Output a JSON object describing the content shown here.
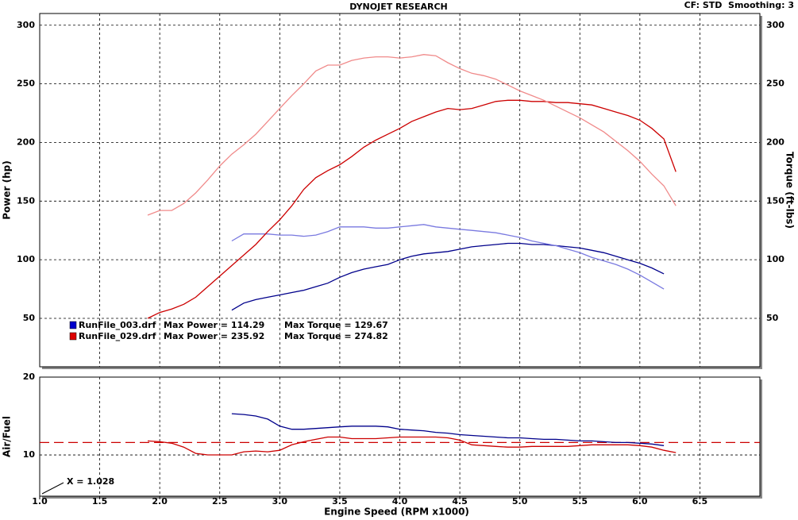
{
  "header": {
    "title": "DYNOJET RESEARCH",
    "settings": "CF: STD  Smoothing: 3"
  },
  "chart_data": [
    {
      "type": "line",
      "ylabel": "Power (hp)",
      "y2label": "Torque (ft-lbs)",
      "xlim": [
        1.0,
        7.0
      ],
      "ylim": [
        8.7,
        310
      ],
      "y2lim": [
        8.7,
        310
      ],
      "xticks": [
        1.5,
        2,
        2.5,
        3,
        3.5,
        4,
        4.5,
        5,
        5.5,
        6,
        6.5
      ],
      "yticks": [
        50,
        100,
        150,
        200,
        250,
        300
      ],
      "y2ticks": [
        50,
        100,
        150,
        200,
        250,
        300
      ],
      "grid": true,
      "legend": [
        {
          "file": "RunFile_003.drf",
          "max_power": "Max Power = 114.29",
          "max_torque": "Max Torque = 129.67",
          "color": "#0000cc"
        },
        {
          "file": "RunFile_029.drf",
          "max_power": "Max Power = 235.92",
          "max_torque": "Max Torque = 274.82",
          "color": "#dd0000"
        }
      ],
      "series": [
        {
          "color": "#00008b",
          "x": [
            2.6,
            2.7,
            2.8,
            2.9,
            3.0,
            3.1,
            3.2,
            3.3,
            3.4,
            3.5,
            3.6,
            3.7,
            3.8,
            3.9,
            4.0,
            4.1,
            4.2,
            4.3,
            4.4,
            4.5,
            4.6,
            4.7,
            4.8,
            4.9,
            5.0,
            5.1,
            5.2,
            5.3,
            5.4,
            5.5,
            5.6,
            5.7,
            5.8,
            5.9,
            6.0,
            6.1,
            6.2
          ],
          "values": [
            57,
            63,
            66,
            68,
            70,
            72,
            74,
            77,
            80,
            85,
            89,
            92,
            94,
            96,
            100,
            103,
            105,
            106,
            107,
            109,
            111,
            112,
            113,
            114,
            114,
            113,
            113,
            112,
            111,
            110,
            108,
            106,
            103,
            100,
            97,
            93,
            88
          ]
        },
        {
          "color": "#7a7ae0",
          "axis": "y2",
          "x": [
            2.6,
            2.7,
            2.8,
            2.9,
            3.0,
            3.1,
            3.2,
            3.3,
            3.4,
            3.5,
            3.6,
            3.7,
            3.8,
            3.9,
            4.0,
            4.1,
            4.2,
            4.3,
            4.4,
            4.5,
            4.6,
            4.7,
            4.8,
            4.9,
            5.0,
            5.1,
            5.2,
            5.3,
            5.4,
            5.5,
            5.6,
            5.7,
            5.8,
            5.9,
            6.0,
            6.1,
            6.2
          ],
          "values": [
            116,
            122,
            122,
            122,
            121,
            121,
            120,
            121,
            124,
            128,
            128,
            128,
            127,
            127,
            128,
            129,
            130,
            128,
            127,
            126,
            125,
            124,
            123,
            121,
            119,
            116,
            114,
            112,
            109,
            106,
            102,
            99,
            96,
            92,
            87,
            81,
            75
          ]
        },
        {
          "color": "#cc0000",
          "x": [
            1.9,
            2.0,
            2.1,
            2.2,
            2.3,
            2.4,
            2.5,
            2.6,
            2.7,
            2.8,
            2.9,
            3.0,
            3.1,
            3.2,
            3.3,
            3.4,
            3.5,
            3.6,
            3.7,
            3.8,
            3.9,
            4.0,
            4.1,
            4.2,
            4.3,
            4.4,
            4.5,
            4.6,
            4.7,
            4.8,
            4.9,
            5.0,
            5.1,
            5.2,
            5.3,
            5.4,
            5.5,
            5.6,
            5.7,
            5.8,
            5.9,
            6.0,
            6.1,
            6.2,
            6.3
          ],
          "values": [
            50,
            55,
            58,
            62,
            68,
            77,
            86,
            95,
            104,
            113,
            124,
            134,
            146,
            160,
            170,
            176,
            181,
            188,
            196,
            202,
            207,
            212,
            218,
            222,
            226,
            229,
            228,
            229,
            232,
            235,
            236,
            236,
            235,
            235,
            234,
            234,
            233,
            232,
            229,
            226,
            223,
            219,
            212,
            203,
            175
          ]
        },
        {
          "color": "#f08a8a",
          "axis": "y2",
          "x": [
            1.9,
            2.0,
            2.1,
            2.2,
            2.3,
            2.4,
            2.5,
            2.6,
            2.7,
            2.8,
            2.9,
            3.0,
            3.1,
            3.2,
            3.3,
            3.4,
            3.5,
            3.6,
            3.7,
            3.8,
            3.9,
            4.0,
            4.1,
            4.2,
            4.3,
            4.4,
            4.5,
            4.6,
            4.7,
            4.8,
            4.9,
            5.0,
            5.1,
            5.2,
            5.3,
            5.4,
            5.5,
            5.6,
            5.7,
            5.8,
            5.9,
            6.0,
            6.1,
            6.2,
            6.3
          ],
          "values": [
            138,
            142,
            142,
            148,
            157,
            168,
            180,
            190,
            198,
            207,
            218,
            229,
            240,
            250,
            261,
            266,
            266,
            270,
            272,
            273,
            273,
            272,
            273,
            275,
            274,
            268,
            263,
            259,
            257,
            254,
            249,
            244,
            240,
            236,
            231,
            226,
            221,
            215,
            209,
            201,
            193,
            184,
            173,
            163,
            146
          ]
        }
      ]
    },
    {
      "type": "line",
      "ylabel": "Air/Fuel",
      "xlabel": "Engine Speed (RPM x1000)",
      "xlim": [
        1.0,
        7.0
      ],
      "ylim": [
        4.7,
        20
      ],
      "xticks": [
        {
          "value": 1.0,
          "label": "1.0"
        },
        1.5,
        {
          "value": 2.0,
          "label": "2.0"
        },
        2.5,
        {
          "value": 3.0,
          "label": "3.0"
        },
        3.5,
        {
          "value": 4.0,
          "label": "4.0"
        },
        4.5,
        {
          "value": 5.0,
          "label": "5.0"
        },
        5.5,
        {
          "value": 6.0,
          "label": "6.0"
        },
        6.5
      ],
      "yticks": [
        10,
        20
      ],
      "grid": true,
      "reference_line": {
        "value": 11.6,
        "color": "#cc0000"
      },
      "annotation": "X = 1.028",
      "series": [
        {
          "color": "#00008b",
          "x": [
            2.6,
            2.7,
            2.8,
            2.9,
            3.0,
            3.1,
            3.2,
            3.3,
            3.4,
            3.5,
            3.6,
            3.7,
            3.8,
            3.9,
            4.0,
            4.1,
            4.2,
            4.3,
            4.4,
            4.5,
            4.6,
            4.7,
            4.8,
            4.9,
            5.0,
            5.1,
            5.2,
            5.3,
            5.4,
            5.5,
            5.6,
            5.7,
            5.8,
            5.9,
            6.0,
            6.1,
            6.2
          ],
          "values": [
            15.3,
            15.2,
            15.0,
            14.6,
            13.7,
            13.3,
            13.3,
            13.4,
            13.5,
            13.6,
            13.7,
            13.7,
            13.7,
            13.6,
            13.3,
            13.2,
            13.1,
            12.9,
            12.8,
            12.6,
            12.5,
            12.4,
            12.3,
            12.2,
            12.2,
            12.1,
            12.0,
            12.0,
            11.9,
            11.8,
            11.8,
            11.7,
            11.6,
            11.6,
            11.5,
            11.4,
            11.2
          ]
        },
        {
          "color": "#cc0000",
          "x": [
            1.9,
            2.0,
            2.1,
            2.2,
            2.3,
            2.4,
            2.5,
            2.6,
            2.7,
            2.8,
            2.9,
            3.0,
            3.1,
            3.2,
            3.3,
            3.4,
            3.5,
            3.6,
            3.7,
            3.8,
            3.9,
            4.0,
            4.1,
            4.2,
            4.3,
            4.4,
            4.5,
            4.6,
            4.7,
            4.8,
            4.9,
            5.0,
            5.1,
            5.2,
            5.3,
            5.4,
            5.5,
            5.6,
            5.7,
            5.8,
            5.9,
            6.0,
            6.1,
            6.2,
            6.3
          ],
          "values": [
            11.8,
            11.7,
            11.5,
            11.0,
            10.2,
            10.0,
            10.0,
            10.0,
            10.4,
            10.5,
            10.4,
            10.6,
            11.3,
            11.7,
            12.0,
            12.3,
            12.3,
            12.1,
            12.1,
            12.1,
            12.2,
            12.3,
            12.3,
            12.3,
            12.3,
            12.2,
            11.9,
            11.3,
            11.2,
            11.1,
            11.0,
            11.0,
            11.1,
            11.1,
            11.1,
            11.1,
            11.2,
            11.3,
            11.3,
            11.3,
            11.3,
            11.2,
            11.0,
            10.6,
            10.3
          ]
        }
      ]
    }
  ]
}
